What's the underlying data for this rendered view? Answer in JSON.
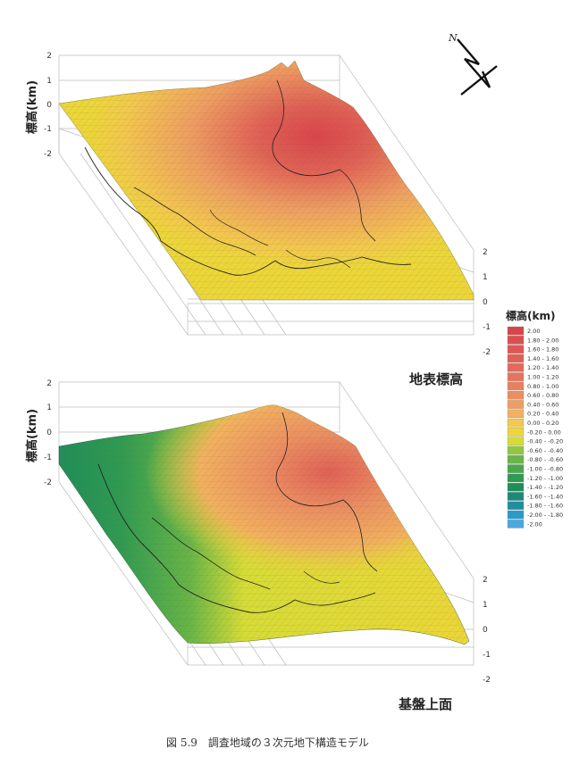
{
  "figure": {
    "caption": "図 5.9　調査地域の３次元地下構造モデル",
    "north_label": "N"
  },
  "chart_data": [
    {
      "type": "surface3d",
      "title": "地表標高",
      "zlabel": "標高(km)",
      "z_ticks_left": [
        "2",
        "1",
        "0",
        "-1",
        "-2"
      ],
      "z_ticks_right": [
        "2",
        "1",
        "0",
        "-1",
        "-2"
      ],
      "zlim": [
        -2,
        2
      ],
      "elevation_range_km": [
        -0.2,
        1.6
      ],
      "peak_km": 1.6
    },
    {
      "type": "surface3d",
      "title": "基盤上面",
      "zlabel": "標高(km)",
      "z_ticks_left": [
        "2",
        "1",
        "0",
        "-1",
        "-2"
      ],
      "z_ticks_right": [
        "2",
        "1",
        "0",
        "-1",
        "-2"
      ],
      "zlim": [
        -2,
        2
      ],
      "elevation_range_km": [
        -1.6,
        1.4
      ],
      "peak_km": 1.4
    }
  ],
  "legend": {
    "title": "標高(km)",
    "entries": [
      {
        "label": "2.00",
        "color": "#d8454b"
      },
      {
        "label": "1.80 - 2.00",
        "color": "#db4e4f"
      },
      {
        "label": "1.60 - 1.80",
        "color": "#de5753"
      },
      {
        "label": "1.40 - 1.60",
        "color": "#e06056"
      },
      {
        "label": "1.20 - 1.40",
        "color": "#e3695a"
      },
      {
        "label": "1.00 - 1.20",
        "color": "#e5745c"
      },
      {
        "label": "0.80 - 1.00",
        "color": "#e88060"
      },
      {
        "label": "0.60 - 0.80",
        "color": "#eb8e62"
      },
      {
        "label": "0.40 - 0.60",
        "color": "#ee9d63"
      },
      {
        "label": "0.20 - 0.40",
        "color": "#f2b060"
      },
      {
        "label": "0.00 - 0.20",
        "color": "#f3c84e"
      },
      {
        "label": "-0.20 - 0.00",
        "color": "#ecd639"
      },
      {
        "label": "-0.40 - -0.20",
        "color": "#d6dc37"
      },
      {
        "label": "-0.60 - -0.40",
        "color": "#92c640"
      },
      {
        "label": "-0.80 - -0.60",
        "color": "#68b548"
      },
      {
        "label": "-1.00 - -0.80",
        "color": "#4aa84c"
      },
      {
        "label": "-1.20 - -1.00",
        "color": "#2f9a52"
      },
      {
        "label": "-1.40 - -1.20",
        "color": "#1e8e5a"
      },
      {
        "label": "-1.60 - -1.40",
        "color": "#1d8a77"
      },
      {
        "label": "-1.80 - -1.60",
        "color": "#1f8fa0"
      },
      {
        "label": "-2.00 - -1.80",
        "color": "#2a9bc8"
      },
      {
        "label": "-2.00",
        "color": "#4aa8e0"
      }
    ]
  }
}
